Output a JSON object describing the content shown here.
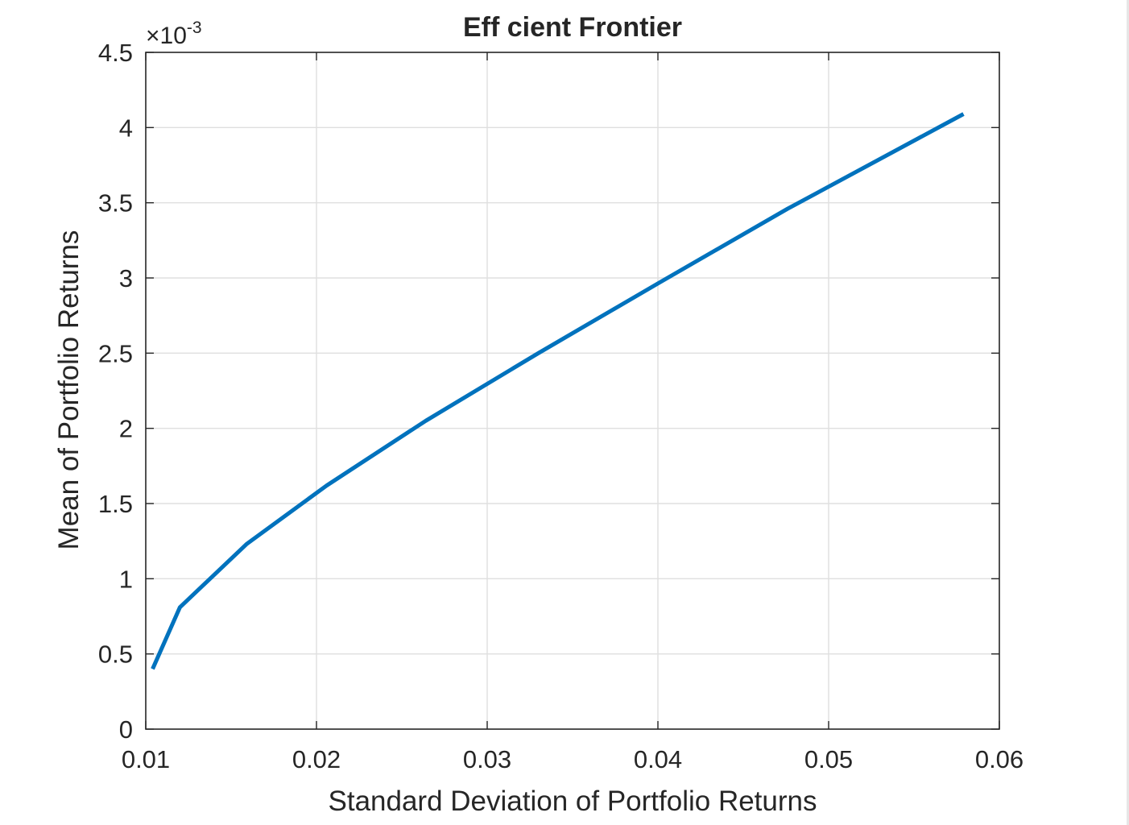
{
  "chart_data": {
    "type": "line",
    "title": "Eff cient  Frontier",
    "xlabel": "Standard Deviation of Portfolio Returns",
    "ylabel": "Mean of Portfolio Returns",
    "y_exponent_label": "×10",
    "y_exponent_power": "-3",
    "xlim": [
      0.01,
      0.06
    ],
    "ylim": [
      0,
      0.0045
    ],
    "xticks": [
      0.01,
      0.02,
      0.03,
      0.04,
      0.05,
      0.06
    ],
    "xtick_labels": [
      "0.01",
      "0.02",
      "0.03",
      "0.04",
      "0.05",
      "0.06"
    ],
    "yticks": [
      0,
      0.0005,
      0.001,
      0.0015,
      0.002,
      0.0025,
      0.003,
      0.0035,
      0.004,
      0.0045
    ],
    "ytick_labels": [
      "0",
      "0.5",
      "1",
      "1.5",
      "2",
      "2.5",
      "3",
      "3.5",
      "4",
      "4.5"
    ],
    "grid": true,
    "series": [
      {
        "color": "#0072bd",
        "x": [
          0.0104,
          0.012,
          0.0159,
          0.0206,
          0.0264,
          0.033,
          0.0401,
          0.0476,
          0.0579
        ],
        "y": [
          0.0004,
          0.00081,
          0.00123,
          0.00162,
          0.00205,
          0.0025,
          0.00297,
          0.00346,
          0.00409
        ]
      }
    ]
  }
}
